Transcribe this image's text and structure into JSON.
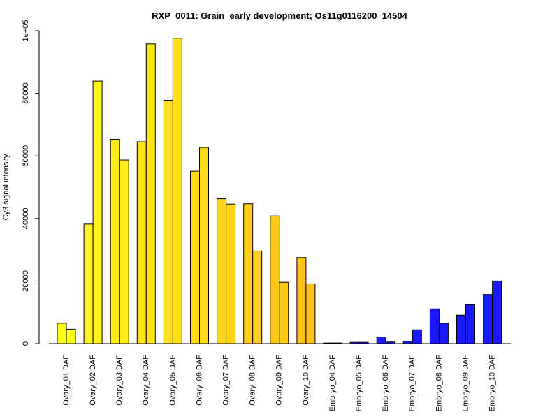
{
  "chart_data": {
    "type": "bar",
    "title": "RXP_0011: Grain_early development; Os11g0116200_14504",
    "xlabel": "",
    "ylabel": "Cy3 signal intensity",
    "ylim": [
      0,
      100000
    ],
    "yticks": [
      {
        "value": 0,
        "label": "0"
      },
      {
        "value": 20000,
        "label": "20000"
      },
      {
        "value": 40000,
        "label": "40000"
      },
      {
        "value": 60000,
        "label": "60000"
      },
      {
        "value": 80000,
        "label": "80000"
      },
      {
        "value": 100000,
        "label": "1e+05"
      }
    ],
    "grid": false,
    "categories": [
      "Ovary_01 DAF",
      "Ovary_02 DAF",
      "Ovary_03 DAF",
      "Ovary_04 DAF",
      "Ovary_05 DAF",
      "Ovary_06 DAF",
      "Ovary_07 DAF",
      "Ovary_08 DAF",
      "Ovary_09 DAF",
      "Ovary_10 DAF",
      "Embryo_04 DAF",
      "Embryo_05 DAF",
      "Embryo_06 DAF",
      "Embryo_07 DAF",
      "Embryo_08 DAF",
      "Embryo_09 DAF",
      "Embryo_10 DAF"
    ],
    "series": [
      {
        "values": [
          6500,
          38200,
          65300,
          64500,
          77800,
          55100,
          46300,
          44700,
          40800,
          27500,
          200,
          400,
          2100,
          700,
          11100,
          9100,
          15700
        ]
      },
      {
        "values": [
          4600,
          83900,
          58700,
          95800,
          97600,
          62700,
          44600,
          29600,
          19600,
          19100,
          200,
          400,
          500,
          4400,
          6500,
          12400,
          20000
        ]
      }
    ],
    "colors": [
      "#ffff1a",
      "#fff51a",
      "#ffeb1a",
      "#ffe61a",
      "#ffe01a",
      "#ffda1a",
      "#ffd41a",
      "#ffcd1a",
      "#ffc81a",
      "#ffc21a",
      "#1a1aff",
      "#1a1aff",
      "#1a1aff",
      "#1a1aff",
      "#1a1aff",
      "#1a1aff",
      "#1a1aff"
    ]
  }
}
